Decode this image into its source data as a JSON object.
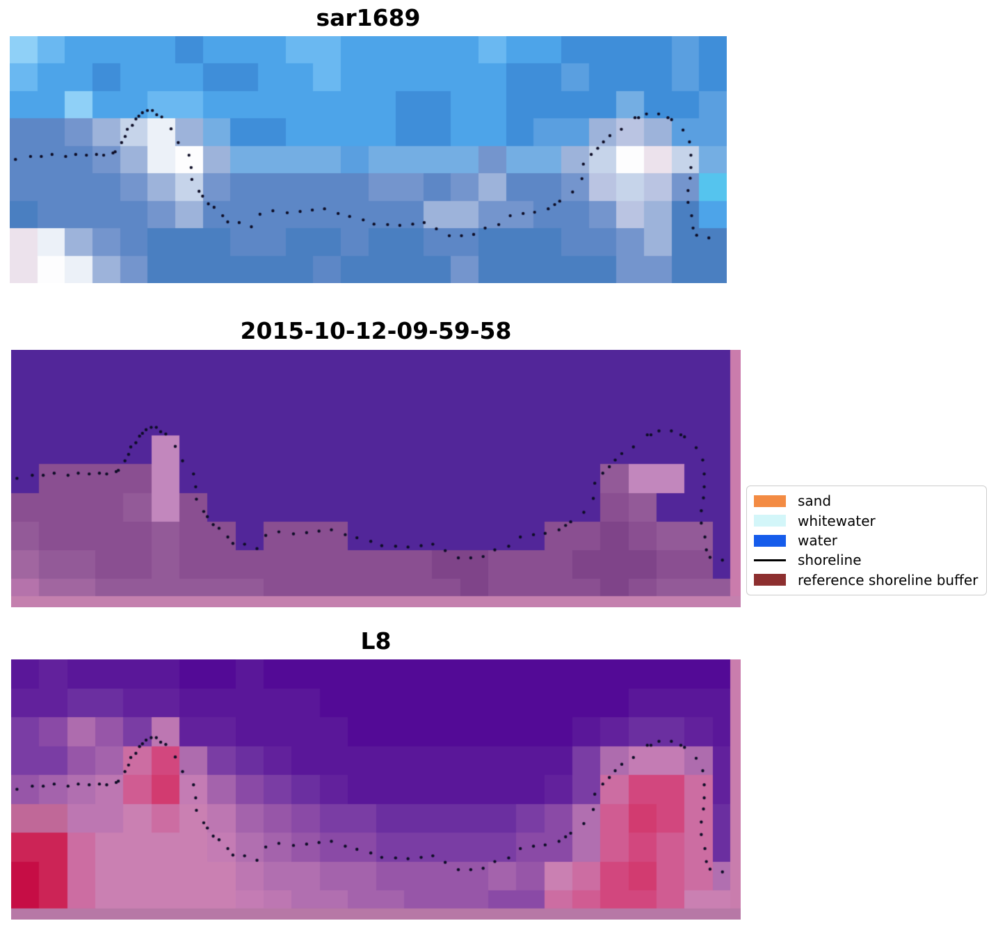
{
  "page": {
    "background": "#ffffff"
  },
  "chart_data": {
    "type": "heatmap",
    "description": "Three stacked pixelated satellite image panels with a dotted reference shoreline overlay and a classification legend",
    "panels": [
      {
        "title": "sar1689",
        "palette": {
          "A": "#8fd0f7",
          "B": "#6ab8f1",
          "C": "#4da4e9",
          "D": "#3f8ed9",
          "E": "#5a9fe0",
          "F": "#74aee3",
          "G": "#5d87c6",
          "H": "#7495cd",
          "I": "#9db3da",
          "J": "#c6d4ea",
          "K": "#ecf1f8",
          "L": "#fdfdfe",
          "M": "#ece2ec",
          "N": "#55c4ee",
          "O": "#4a7fc1",
          "P": "#bac4e2"
        },
        "rows": [
          "ABCCCCDCCCBBCCCCCBCCDDDDED",
          "BCCDCCCDDCCBCCCCCCDDEDDDED",
          "CCACCBBCCCCCCCDDCCDDDDFDDE",
          "GGHIJKIFDDCCCCDDCCDEEIPIEE",
          "GGGHIKLIFFFFEFFFFHFFIJLMJF",
          "GGGGHIJHGGGGGHHGHIGGHPJPHN",
          "OGGGGHIGGGGGGGGIIHHGGHPIOC",
          "MKIHGOOOGGOOGOOGGOOOGGHIOO",
          "MLKIHOOOOOOGOOOOHOOOOOHHOO"
        ]
      },
      {
        "title": "2015-10-12-09-59-58",
        "palette": {
          "a": "#522699",
          "b": "#7f4489",
          "c": "#8a4f91",
          "d": "#935a98",
          "e": "#a166a0",
          "f": "#c287bd",
          "i": "#b573ab"
        },
        "rows": [
          "aaaaaaaaaaaaaaaaaaaaaaaaaa",
          "aaaaaaaaaaaaaaaaaaaaaaaaaa",
          "aaaaaaaaaaaaaaaaaaaaaaaaaa",
          "aaaaafaaaaaaaaaaaaaaaaaaaa",
          "accccfaaaaaaaaaaaaaaadffaa",
          "ccccdfcaaaaaaaaaaaaaacdaaa",
          "dccccdccacccaaaaaaaccbcdda",
          "eddccdcccccccccbbcccbbbcca",
          "ieeddddddcccccccbccccbcddd"
        ],
        "right_strip": {
          "color": "#ca7cac",
          "width": 15
        },
        "bottom_strip": {
          "color": "#c480ae",
          "height": 16
        }
      },
      {
        "title": "L8",
        "palette": {
          "A": "#530a96",
          "B": "#5a1799",
          "C": "#62219c",
          "D": "#6b2fa0",
          "E": "#7a3da4",
          "F": "#8a4aa6",
          "G": "#9756a8",
          "H": "#a463ac",
          "I": "#b16fb0",
          "J": "#bd77b2",
          "K": "#c47cb4",
          "L": "#ca80b2",
          "M": "#cc6da2",
          "N": "#d05c92",
          "O": "#d2477e",
          "P": "#d23b70",
          "Q": "#c60d45",
          "R": "#cc2456",
          "S": "#c06898",
          "T": "#ae6cae"
        },
        "rows": [
          "BCBBBBAABAAAAAAAAAAAAAAAAA",
          "CCDDCCBBBBBAAAAAAAAAAABBBB",
          "EFTGEJCCBBBBAAAAAAAABCDDCB",
          "EEGHMOTEDCBBBBBBBBBBETKKTC",
          "GHIJNPKHFEDCBBBBBBBCEMOOMC",
          "SSJJLMLJHGFEEDDDDDEFINPOMD",
          "RRMLLLLKIHGFFEEEEEFFINONMD",
          "QRMLLLLLJIIHHGGGGHGLMOPNMI",
          "QRMLLLLLKJIIHHGGGFFMNOONLL"
        ],
        "right_strip": {
          "color": "#c97dad",
          "width": 15
        },
        "bottom_strip": {
          "color": "#b778a6",
          "height": 16
        }
      }
    ],
    "shoreline": {
      "color": "#0d0d26",
      "dot_radius": 2.2,
      "points": [
        [
          0.008,
          0.499
        ],
        [
          0.029,
          0.487
        ],
        [
          0.044,
          0.487
        ],
        [
          0.059,
          0.479
        ],
        [
          0.078,
          0.487
        ],
        [
          0.092,
          0.479
        ],
        [
          0.107,
          0.482
        ],
        [
          0.121,
          0.479
        ],
        [
          0.131,
          0.482
        ],
        [
          0.144,
          0.473
        ],
        [
          0.147,
          0.468
        ],
        [
          0.156,
          0.431
        ],
        [
          0.161,
          0.406
        ],
        [
          0.164,
          0.377
        ],
        [
          0.171,
          0.361
        ],
        [
          0.176,
          0.335
        ],
        [
          0.18,
          0.324
        ],
        [
          0.185,
          0.31
        ],
        [
          0.192,
          0.301
        ],
        [
          0.199,
          0.301
        ],
        [
          0.205,
          0.318
        ],
        [
          0.212,
          0.327
        ],
        [
          0.225,
          0.375
        ],
        [
          0.235,
          0.431
        ],
        [
          0.25,
          0.482
        ],
        [
          0.253,
          0.532
        ],
        [
          0.254,
          0.58
        ],
        [
          0.264,
          0.628
        ],
        [
          0.269,
          0.648
        ],
        [
          0.277,
          0.679
        ],
        [
          0.285,
          0.693
        ],
        [
          0.297,
          0.727
        ],
        [
          0.304,
          0.752
        ],
        [
          0.32,
          0.755
        ],
        [
          0.337,
          0.772
        ],
        [
          0.349,
          0.721
        ],
        [
          0.367,
          0.707
        ],
        [
          0.387,
          0.715
        ],
        [
          0.405,
          0.71
        ],
        [
          0.422,
          0.704
        ],
        [
          0.439,
          0.699
        ],
        [
          0.458,
          0.718
        ],
        [
          0.474,
          0.73
        ],
        [
          0.493,
          0.744
        ],
        [
          0.508,
          0.761
        ],
        [
          0.527,
          0.763
        ],
        [
          0.544,
          0.766
        ],
        [
          0.562,
          0.761
        ],
        [
          0.578,
          0.755
        ],
        [
          0.595,
          0.78
        ],
        [
          0.613,
          0.808
        ],
        [
          0.63,
          0.808
        ],
        [
          0.647,
          0.803
        ],
        [
          0.663,
          0.777
        ],
        [
          0.682,
          0.763
        ],
        [
          0.698,
          0.727
        ],
        [
          0.716,
          0.718
        ],
        [
          0.732,
          0.713
        ],
        [
          0.751,
          0.699
        ],
        [
          0.76,
          0.682
        ],
        [
          0.767,
          0.668
        ],
        [
          0.785,
          0.631
        ],
        [
          0.798,
          0.577
        ],
        [
          0.8,
          0.518
        ],
        [
          0.811,
          0.479
        ],
        [
          0.82,
          0.454
        ],
        [
          0.828,
          0.428
        ],
        [
          0.837,
          0.403
        ],
        [
          0.853,
          0.377
        ],
        [
          0.872,
          0.33
        ],
        [
          0.877,
          0.33
        ],
        [
          0.888,
          0.315
        ],
        [
          0.905,
          0.315
        ],
        [
          0.918,
          0.33
        ],
        [
          0.923,
          0.338
        ],
        [
          0.939,
          0.38
        ],
        [
          0.948,
          0.428
        ],
        [
          0.95,
          0.482
        ],
        [
          0.95,
          0.532
        ],
        [
          0.949,
          0.575
        ],
        [
          0.946,
          0.625
        ],
        [
          0.946,
          0.673
        ],
        [
          0.951,
          0.727
        ],
        [
          0.953,
          0.777
        ],
        [
          0.958,
          0.806
        ],
        [
          0.975,
          0.817
        ]
      ]
    },
    "legend": {
      "entries": [
        {
          "label": "sand",
          "type": "patch",
          "color": "#f38b43"
        },
        {
          "label": "whitewater",
          "type": "patch",
          "color": "#d3f6f9"
        },
        {
          "label": "water",
          "type": "patch",
          "color": "#155ceb"
        },
        {
          "label": "shoreline",
          "type": "line",
          "color": "#000000"
        },
        {
          "label": "reference shoreline buffer",
          "type": "patch",
          "color": "#8d2f2f"
        }
      ]
    }
  }
}
